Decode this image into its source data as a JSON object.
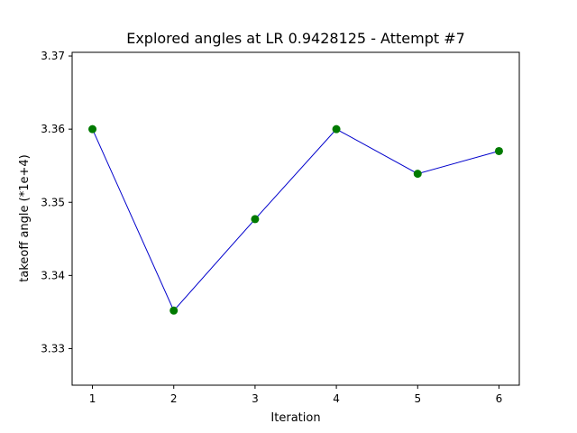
{
  "chart_data": {
    "type": "line",
    "title": "Explored angles at LR 0.9428125 - Attempt #7",
    "xlabel": "Iteration",
    "ylabel": "takeoff angle (*1e+4)",
    "x": [
      1,
      2,
      3,
      4,
      5,
      6
    ],
    "series": [
      {
        "name": "takeoff angle",
        "values": [
          3.36,
          3.3352,
          3.3477,
          3.36,
          3.3539,
          3.357
        ],
        "line_color": "#0000cc",
        "marker_color": "#007a00"
      }
    ],
    "xlim": [
      0.75,
      6.25
    ],
    "ylim": [
      3.325,
      3.3705
    ],
    "x_ticks": [
      1,
      2,
      3,
      4,
      5,
      6
    ],
    "x_tick_labels": [
      "1",
      "2",
      "3",
      "4",
      "5",
      "6"
    ],
    "y_ticks": [
      3.33,
      3.34,
      3.35,
      3.36,
      3.37
    ],
    "y_tick_labels": [
      "3.33",
      "3.34",
      "3.35",
      "3.36",
      "3.37"
    ],
    "grid": false,
    "legend": "none"
  }
}
